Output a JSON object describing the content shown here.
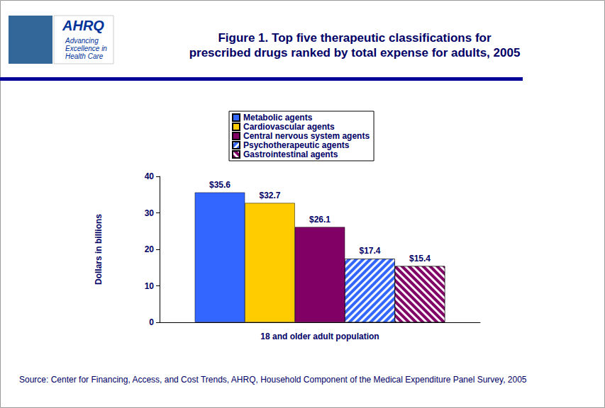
{
  "chart_data": {
    "type": "bar",
    "title": "Figure 1. Top five therapeutic classifications for\nprescribed drugs ranked by total expense for adults, 2005",
    "y_label": "Dollars in billions",
    "categories": [
      "18 and older adult population"
    ],
    "series": [
      {
        "name": "Metabolic agents",
        "color": "#3366ff",
        "values": [
          35.6
        ],
        "value_labels": [
          "$35.6"
        ]
      },
      {
        "name": "Cardiovascular agents",
        "color": "#ffcc00",
        "values": [
          32.7
        ],
        "value_labels": [
          "$32.7"
        ]
      },
      {
        "name": "Central nervous system agents",
        "color": "#800066",
        "values": [
          26.1
        ],
        "value_labels": [
          "$26.1"
        ]
      },
      {
        "name": "Psychotherapeutic agents",
        "color": "#3366ff",
        "values": [
          17.4
        ],
        "value_labels": [
          "$17.4"
        ]
      },
      {
        "name": "Gastrointestinal agents",
        "color": "#800066",
        "values": [
          15.4
        ],
        "value_labels": [
          "$15.4"
        ]
      }
    ],
    "ylim": [
      0,
      40
    ],
    "yticks": [
      0,
      10,
      20,
      30,
      40
    ],
    "grid": false,
    "legend": "top",
    "data_labels": true,
    "source": "Source: Center for Financing, Access, and Cost Trends, AHRQ, Household Component of the Medical Expenditure Panel Survey, 2005",
    "logo": {
      "name": "AHRQ",
      "tagline": "Advancing\nExcellence in\nHealth Care"
    }
  }
}
